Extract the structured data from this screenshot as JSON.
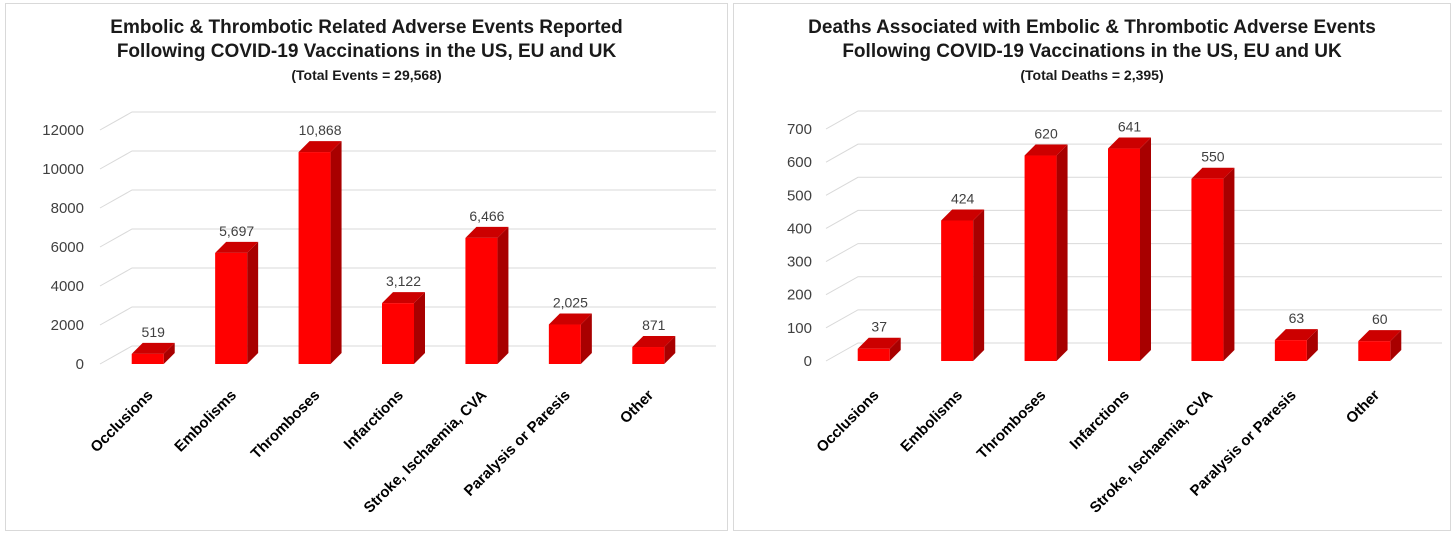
{
  "colors": {
    "bar_front": "#ff0000",
    "bar_top": "#cc0000",
    "bar_side": "#a80000",
    "grid": "#d9d9d9"
  },
  "chart_data": [
    {
      "type": "bar",
      "title_line1": "Embolic & Thrombotic Related Adverse Events Reported",
      "title_line2": "Following COVID-19 Vaccinations in the US, EU and UK",
      "subtitle": "(Total Events = 29,568)",
      "categories": [
        "Occlusions",
        "Embolisms",
        "Thromboses",
        "Infarctions",
        "Stroke, Ischaemia, CVA",
        "Paralysis or Paresis",
        "Other"
      ],
      "values": [
        519,
        5697,
        10868,
        3122,
        6466,
        2025,
        871
      ],
      "data_labels": [
        "519",
        "5,697",
        "10,868",
        "3,122",
        "6,466",
        "2,025",
        "871"
      ],
      "yticks": [
        0,
        2000,
        4000,
        6000,
        8000,
        10000,
        12000
      ],
      "ylim": [
        0,
        12000
      ],
      "grid": true,
      "legend": "none",
      "style": "3d-column"
    },
    {
      "type": "bar",
      "title_line1": "Deaths Associated with Embolic & Thrombotic Adverse Events",
      "title_line2": "Following COVID-19 Vaccinations in the US, EU and UK",
      "subtitle": "(Total Deaths = 2,395)",
      "categories": [
        "Occlusions",
        "Embolisms",
        "Thromboses",
        "Infarctions",
        "Stroke, Ischaemia, CVA",
        "Paralysis or Paresis",
        "Other"
      ],
      "values": [
        37,
        424,
        620,
        641,
        550,
        63,
        60
      ],
      "data_labels": [
        "37",
        "424",
        "620",
        "641",
        "550",
        "63",
        "60"
      ],
      "yticks": [
        0,
        100,
        200,
        300,
        400,
        500,
        600,
        700
      ],
      "ylim": [
        0,
        700
      ],
      "grid": true,
      "legend": "none",
      "style": "3d-column"
    }
  ]
}
